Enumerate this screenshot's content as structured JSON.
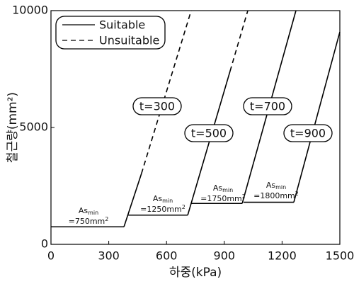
{
  "chart_data": {
    "type": "line",
    "x_label": "하중(kPa)",
    "y_label": "철근량(mm²)",
    "xlim": [
      0,
      1500
    ],
    "xticks": [
      0,
      300,
      600,
      900,
      1200,
      1500
    ],
    "ylim": [
      0,
      10000
    ],
    "yticks": [
      0,
      5000,
      10000
    ],
    "color": "#000000",
    "legend_position": "upper left",
    "legend": [
      {
        "name": "Suitable",
        "style": "solid"
      },
      {
        "name": "Unsuitable",
        "style": "dashed"
      }
    ],
    "series": [
      {
        "name": "t=300",
        "x": [
          0,
          379,
          470,
          728
        ],
        "values": [
          750,
          750,
          3030,
          10000
        ],
        "segment_styles": [
          "solid",
          "solid",
          "dashed"
        ]
      },
      {
        "name": "t=500",
        "x": [
          397,
          710,
          930,
          1022
        ],
        "values": [
          1250,
          1250,
          7410,
          10000
        ],
        "segment_styles": [
          "solid",
          "solid",
          "dashed"
        ]
      },
      {
        "name": "t=700",
        "x": [
          728,
          993,
          1272
        ],
        "values": [
          1750,
          1750,
          10000
        ],
        "segment_styles": [
          "solid",
          "solid"
        ]
      },
      {
        "name": "t=900",
        "x": [
          1000,
          1261,
          1500
        ],
        "values": [
          1800,
          1800,
          9090
        ],
        "segment_styles": [
          "solid",
          "solid"
        ]
      }
    ],
    "annotations": [
      {
        "main": "As",
        "sub": "min",
        "text": "=750mm",
        "sup": "2"
      },
      {
        "main": "As",
        "sub": "min",
        "text": "=1250mm",
        "sup": "2"
      },
      {
        "main": "As",
        "sub": "min",
        "text": "=1750mm",
        "sup": "2"
      },
      {
        "main": "As",
        "sub": "min",
        "text": "=1800mm",
        "sup": "2"
      }
    ]
  }
}
